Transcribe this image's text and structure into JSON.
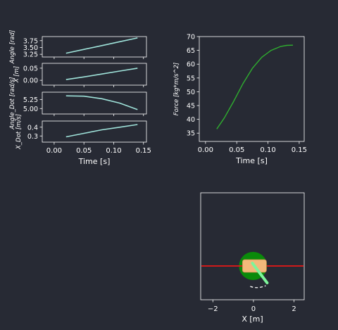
{
  "colors": {
    "background": "#272a34",
    "axes_frame": "#ffffff",
    "state_line": "#9fe3da",
    "force_line": "#2fae2f",
    "track": "#d11a1a",
    "cart": "#f2b97a",
    "wheel": "#0a8a0a",
    "pole": "#7df59a",
    "trail": "#ffffff"
  },
  "chart_data": [
    {
      "type": "line",
      "id": "angle",
      "title": "",
      "xlabel": "",
      "ylabel": "Angle [rad]",
      "xlim": [
        -0.02,
        0.155
      ],
      "ylim": [
        3.15,
        3.9
      ],
      "yticks": [
        3.25,
        3.5,
        3.75
      ],
      "ytick_labels": [
        "3.25",
        "3.50",
        "3.75"
      ],
      "x": [
        0.02,
        0.05,
        0.08,
        0.11,
        0.14
      ],
      "series": [
        {
          "values": [
            3.29,
            3.43,
            3.57,
            3.71,
            3.85
          ]
        }
      ]
    },
    {
      "type": "line",
      "id": "x_position",
      "title": "",
      "xlabel": "",
      "ylabel": "X [m]",
      "xlim": [
        -0.02,
        0.155
      ],
      "ylim": [
        -0.02,
        0.07
      ],
      "yticks": [
        0.0,
        0.05
      ],
      "ytick_labels": [
        "0.00",
        "0.05"
      ],
      "x": [
        0.02,
        0.05,
        0.08,
        0.11,
        0.14
      ],
      "series": [
        {
          "values": [
            0.003,
            0.014,
            0.026,
            0.038,
            0.05
          ]
        }
      ]
    },
    {
      "type": "line",
      "id": "angle_dot",
      "title": "",
      "xlabel": "",
      "ylabel": "Angle_Dot [rad/s]",
      "xlim": [
        -0.02,
        0.155
      ],
      "ylim": [
        4.85,
        5.45
      ],
      "yticks": [
        5.0,
        5.25
      ],
      "ytick_labels": [
        "5.00",
        "5.25"
      ],
      "x": [
        0.02,
        0.05,
        0.08,
        0.11,
        0.14
      ],
      "series": [
        {
          "values": [
            5.35,
            5.34,
            5.27,
            5.15,
            4.97
          ]
        }
      ]
    },
    {
      "type": "line",
      "id": "x_dot",
      "title": "",
      "xlabel": "Time [s]",
      "ylabel": "X_Dot [m/s]",
      "xlim": [
        -0.02,
        0.155
      ],
      "ylim": [
        0.23,
        0.47
      ],
      "xticks": [
        0.0,
        0.05,
        0.1,
        0.15
      ],
      "xtick_labels": [
        "0.00",
        "0.05",
        "0.10",
        "0.15"
      ],
      "yticks": [
        0.3,
        0.4
      ],
      "ytick_labels": [
        "0.3",
        "0.4"
      ],
      "x": [
        0.02,
        0.05,
        0.08,
        0.11,
        0.14
      ],
      "series": [
        {
          "values": [
            0.29,
            0.33,
            0.37,
            0.4,
            0.43
          ]
        }
      ]
    },
    {
      "type": "line",
      "id": "force",
      "title": "",
      "xlabel": "Time [s]",
      "ylabel": "Force [kg*m/s^2]",
      "xlim": [
        -0.01,
        0.158
      ],
      "ylim": [
        32,
        70
      ],
      "xticks": [
        0.0,
        0.05,
        0.1,
        0.15
      ],
      "xtick_labels": [
        "0.00",
        "0.05",
        "0.10",
        "0.15"
      ],
      "yticks": [
        35,
        40,
        45,
        50,
        55,
        60,
        65,
        70
      ],
      "ytick_labels": [
        "35",
        "40",
        "45",
        "50",
        "55",
        "60",
        "65",
        "70"
      ],
      "x": [
        0.018,
        0.03,
        0.045,
        0.06,
        0.075,
        0.09,
        0.105,
        0.12,
        0.13,
        0.14
      ],
      "series": [
        {
          "values": [
            36.5,
            40.5,
            46.5,
            53.0,
            58.5,
            62.5,
            65.0,
            66.4,
            66.8,
            66.9
          ]
        }
      ]
    }
  ],
  "sim_view": {
    "xlabel": "X [m]",
    "xlim": [
      -2.6,
      2.5
    ],
    "xticks": [
      -2,
      0,
      2
    ],
    "xtick_labels": [
      "−2",
      "0",
      "2"
    ],
    "cart_x": 0.05
  }
}
